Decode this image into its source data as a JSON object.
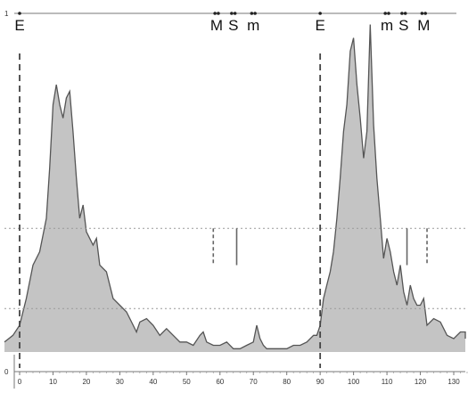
{
  "chart_data": {
    "type": "area",
    "title": "",
    "xlabel": "",
    "ylabel": "",
    "xlim": [
      0,
      135
    ],
    "ylim": [
      0,
      1
    ],
    "x_ticks": [
      0,
      10,
      20,
      30,
      40,
      50,
      60,
      70,
      80,
      90,
      100,
      110,
      120,
      130
    ],
    "top_axis_labels": [
      "1",
      "0"
    ],
    "series": [
      {
        "values": [
          [
            -5,
            0.03
          ],
          [
            -2,
            0.05
          ],
          [
            0,
            0.08
          ],
          [
            2,
            0.16
          ],
          [
            4,
            0.26
          ],
          [
            6,
            0.3
          ],
          [
            8,
            0.4
          ],
          [
            9,
            0.55
          ],
          [
            10,
            0.74
          ],
          [
            11,
            0.8
          ],
          [
            12,
            0.74
          ],
          [
            13,
            0.7
          ],
          [
            14,
            0.76
          ],
          [
            15,
            0.78
          ],
          [
            16,
            0.66
          ],
          [
            17,
            0.52
          ],
          [
            18,
            0.4
          ],
          [
            19,
            0.44
          ],
          [
            20,
            0.36
          ],
          [
            22,
            0.32
          ],
          [
            23,
            0.34
          ],
          [
            24,
            0.26
          ],
          [
            26,
            0.24
          ],
          [
            28,
            0.16
          ],
          [
            30,
            0.14
          ],
          [
            32,
            0.12
          ],
          [
            34,
            0.08
          ],
          [
            35,
            0.06
          ],
          [
            36,
            0.09
          ],
          [
            38,
            0.1
          ],
          [
            40,
            0.08
          ],
          [
            42,
            0.05
          ],
          [
            44,
            0.07
          ],
          [
            46,
            0.05
          ],
          [
            48,
            0.03
          ],
          [
            50,
            0.03
          ],
          [
            52,
            0.02
          ],
          [
            54,
            0.05
          ],
          [
            55,
            0.06
          ],
          [
            56,
            0.03
          ],
          [
            58,
            0.02
          ],
          [
            60,
            0.02
          ],
          [
            62,
            0.03
          ],
          [
            64,
            0.01
          ],
          [
            66,
            0.01
          ],
          [
            68,
            0.02
          ],
          [
            70,
            0.03
          ],
          [
            71,
            0.08
          ],
          [
            72,
            0.04
          ],
          [
            73,
            0.02
          ],
          [
            74,
            0.01
          ],
          [
            76,
            0.01
          ],
          [
            78,
            0.01
          ],
          [
            80,
            0.01
          ],
          [
            82,
            0.02
          ],
          [
            84,
            0.02
          ],
          [
            86,
            0.03
          ],
          [
            88,
            0.05
          ],
          [
            89,
            0.05
          ],
          [
            90,
            0.08
          ],
          [
            91,
            0.16
          ],
          [
            92,
            0.2
          ],
          [
            93,
            0.24
          ],
          [
            94,
            0.3
          ],
          [
            95,
            0.4
          ],
          [
            96,
            0.52
          ],
          [
            97,
            0.66
          ],
          [
            98,
            0.74
          ],
          [
            99,
            0.9
          ],
          [
            100,
            0.94
          ],
          [
            101,
            0.8
          ],
          [
            102,
            0.7
          ],
          [
            103,
            0.58
          ],
          [
            104,
            0.66
          ],
          [
            105,
            0.98
          ],
          [
            106,
            0.68
          ],
          [
            107,
            0.52
          ],
          [
            108,
            0.4
          ],
          [
            109,
            0.28
          ],
          [
            110,
            0.34
          ],
          [
            111,
            0.3
          ],
          [
            112,
            0.24
          ],
          [
            113,
            0.2
          ],
          [
            114,
            0.26
          ],
          [
            115,
            0.18
          ],
          [
            116,
            0.14
          ],
          [
            117,
            0.2
          ],
          [
            118,
            0.16
          ],
          [
            119,
            0.14
          ],
          [
            120,
            0.14
          ],
          [
            121,
            0.16
          ],
          [
            122,
            0.08
          ],
          [
            124,
            0.1
          ],
          [
            126,
            0.09
          ],
          [
            128,
            0.05
          ],
          [
            130,
            0.04
          ],
          [
            132,
            0.06
          ],
          [
            134,
            0.06
          ],
          [
            135,
            0.04
          ]
        ]
      }
    ],
    "event_markers": [
      {
        "label": "E",
        "x": 0
      },
      {
        "label": "M",
        "x": 59
      },
      {
        "label": "S",
        "x": 64
      },
      {
        "label": "m",
        "x": 70
      },
      {
        "label": "E",
        "x": 90
      },
      {
        "label": "m",
        "x": 110
      },
      {
        "label": "S",
        "x": 115
      },
      {
        "label": "M",
        "x": 121
      }
    ],
    "top_dots": [
      0,
      58.5,
      59.5,
      63.5,
      64.5,
      69.5,
      70.5,
      90,
      109.5,
      110.5,
      114.5,
      115.5,
      120.5,
      121.5
    ],
    "event_lines_x": [
      0,
      90
    ],
    "reference_levels": [
      0.37,
      0.13
    ],
    "short_markers": [
      {
        "x": 58,
        "y": [
          0.26,
          0.37
        ],
        "style": "dashed"
      },
      {
        "x": 65,
        "y": [
          0.26,
          0.37
        ],
        "style": "solid"
      },
      {
        "x": 116,
        "y": [
          0.26,
          0.37
        ],
        "style": "solid"
      },
      {
        "x": 122,
        "y": [
          0.26,
          0.37
        ],
        "style": "dashed"
      }
    ],
    "grid": false,
    "colors": {
      "fill": "#c4c4c4",
      "line": "#555555",
      "axis": "#777777",
      "reference": "#999999"
    }
  }
}
